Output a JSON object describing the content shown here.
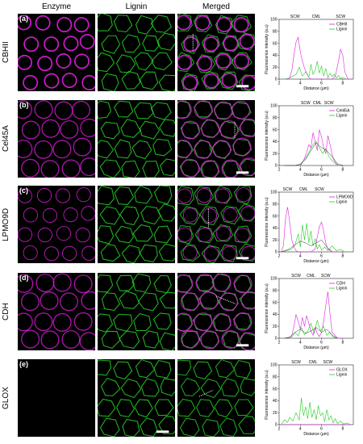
{
  "headers": {
    "enzyme": "Enzyme",
    "lignin": "Lignin",
    "merged": "Merged"
  },
  "colors": {
    "enzyme": "#e01ee0",
    "lignin": "#22cc22",
    "black": "#000000"
  },
  "rows": [
    {
      "letter": "(a)",
      "label": "CBHII",
      "enzyme_pattern": "rings-thick"
    },
    {
      "letter": "(b)",
      "label": "Cel45A",
      "enzyme_pattern": "walls-dense"
    },
    {
      "letter": "(c)",
      "label": "LPMO9D",
      "enzyme_pattern": "rings-thin"
    },
    {
      "letter": "(d)",
      "label": "CDH",
      "enzyme_pattern": "walls-dense"
    },
    {
      "letter": "(e)",
      "label": "GLOX",
      "enzyme_pattern": "none"
    }
  ],
  "chart_data": [
    {
      "type": "line",
      "xlabel": "Distance (µm)",
      "ylabel": "Fluorescence intensity (a.u)",
      "xlim": [
        2,
        9
      ],
      "ylim": [
        0,
        100
      ],
      "xticks": [
        2,
        4,
        6,
        8
      ],
      "yticks": [
        0,
        20,
        40,
        60,
        80,
        100
      ],
      "annotations": [
        {
          "text": "SCW",
          "x": 3.5
        },
        {
          "text": "CML",
          "x": 5.5
        },
        {
          "text": "SCW",
          "x": 7.8
        }
      ],
      "series": [
        {
          "name": "CBHII",
          "color": "#e01ee0",
          "x": [
            2.5,
            2.8,
            3.0,
            3.2,
            3.4,
            3.6,
            3.8,
            4.0,
            4.2,
            4.4,
            4.6,
            4.8,
            5.0,
            5.4,
            5.8,
            6.2,
            6.6,
            7.0,
            7.3,
            7.6,
            7.8,
            8.0,
            8.2,
            8.5,
            9.0
          ],
          "y": [
            0,
            0,
            2,
            15,
            40,
            62,
            70,
            45,
            30,
            18,
            10,
            3,
            0,
            0,
            0,
            0,
            0,
            0,
            5,
            30,
            50,
            40,
            12,
            0,
            0
          ]
        },
        {
          "name": "Lignin",
          "color": "#22cc22",
          "x": [
            2.5,
            3.0,
            3.3,
            3.6,
            3.9,
            4.2,
            4.5,
            4.8,
            5.0,
            5.2,
            5.4,
            5.6,
            5.8,
            6.0,
            6.2,
            6.4,
            6.6,
            6.8,
            7.0,
            7.2,
            7.4,
            7.6,
            7.8,
            8.0,
            8.3
          ],
          "y": [
            0,
            2,
            5,
            8,
            20,
            5,
            12,
            3,
            25,
            8,
            15,
            30,
            10,
            22,
            5,
            18,
            2,
            10,
            4,
            8,
            2,
            6,
            1,
            3,
            0
          ]
        }
      ]
    },
    {
      "type": "line",
      "xlabel": "Distance (µm)",
      "ylabel": "Fluorescence intensity (a.u)",
      "xlim": [
        2,
        9
      ],
      "ylim": [
        0,
        100
      ],
      "xticks": [
        2,
        4,
        6,
        8
      ],
      "yticks": [
        0,
        20,
        40,
        60,
        80,
        100
      ],
      "annotations": [
        {
          "text": "SCW",
          "x": 4.5
        },
        {
          "text": "CML",
          "x": 5.6
        },
        {
          "text": "SCW",
          "x": 6.7
        }
      ],
      "series": [
        {
          "name": "Cel45A",
          "color": "#e01ee0",
          "x": [
            2.5,
            3.5,
            4.0,
            4.2,
            4.4,
            4.6,
            4.8,
            5.0,
            5.2,
            5.4,
            5.6,
            5.8,
            6.0,
            6.2,
            6.4,
            6.6,
            6.8,
            7.0,
            7.2,
            7.4,
            7.6,
            8.0
          ],
          "y": [
            0,
            0,
            0,
            5,
            12,
            22,
            35,
            30,
            55,
            40,
            25,
            60,
            48,
            30,
            20,
            50,
            35,
            18,
            8,
            3,
            0,
            0
          ]
        },
        {
          "name": "Lignin",
          "color": "#22cc22",
          "x": [
            2.5,
            3.5,
            4.0,
            4.3,
            4.6,
            4.9,
            5.2,
            5.5,
            5.8,
            6.1,
            6.4,
            6.7,
            7.0,
            7.3,
            7.6,
            8.0
          ],
          "y": [
            0,
            0,
            2,
            8,
            15,
            25,
            35,
            40,
            30,
            20,
            28,
            15,
            8,
            3,
            0,
            0
          ]
        },
        {
          "name": "",
          "color": "#000000",
          "x": [
            2.5,
            3.5,
            4.0,
            4.5,
            5.0,
            5.5,
            6.0,
            6.5,
            7.0,
            7.5,
            8.0
          ],
          "y": [
            0,
            0,
            2,
            10,
            25,
            38,
            30,
            25,
            15,
            3,
            0
          ]
        }
      ]
    },
    {
      "type": "line",
      "xlabel": "Distance (µm)",
      "ylabel": "Fluorescence intensity (a.u)",
      "xlim": [
        2,
        9
      ],
      "ylim": [
        0,
        100
      ],
      "xticks": [
        2,
        4,
        6,
        8
      ],
      "yticks": [
        0,
        20,
        40,
        60,
        80,
        100
      ],
      "annotations": [
        {
          "text": "SCW",
          "x": 2.8
        },
        {
          "text": "CML",
          "x": 4.3
        },
        {
          "text": "SCW",
          "x": 5.8
        }
      ],
      "series": [
        {
          "name": "LPMO9D",
          "color": "#e01ee0",
          "x": [
            2.2,
            2.4,
            2.6,
            2.8,
            3.0,
            3.2,
            3.4,
            3.6,
            3.8,
            4.0,
            4.5,
            5.0,
            5.4,
            5.6,
            5.8,
            6.0,
            6.2,
            6.4,
            6.6,
            7.0,
            8.0
          ],
          "y": [
            0,
            10,
            55,
            75,
            50,
            20,
            8,
            2,
            0,
            0,
            0,
            0,
            5,
            25,
            42,
            50,
            35,
            15,
            5,
            0,
            0
          ]
        },
        {
          "name": "Lignin",
          "color": "#22cc22",
          "x": [
            2.2,
            2.8,
            3.2,
            3.5,
            3.8,
            4.0,
            4.2,
            4.4,
            4.6,
            4.8,
            5.0,
            5.2,
            5.4,
            5.6,
            5.8,
            6.0,
            6.3,
            6.6,
            7.0,
            7.4,
            7.8,
            8.2
          ],
          "y": [
            0,
            2,
            5,
            12,
            30,
            8,
            45,
            20,
            48,
            15,
            35,
            10,
            22,
            5,
            12,
            3,
            8,
            2,
            10,
            2,
            4,
            0
          ]
        },
        {
          "name": "",
          "color": "#000000",
          "x": [
            2.2,
            3.0,
            3.5,
            4.0,
            4.5,
            5.0,
            5.5,
            6.0,
            6.5,
            7.0
          ],
          "y": [
            0,
            5,
            12,
            18,
            15,
            10,
            15,
            20,
            8,
            0
          ]
        }
      ]
    },
    {
      "type": "line",
      "xlabel": "Distance (µm)",
      "ylabel": "Fluorescence intensity (a.u)",
      "xlim": [
        2,
        9
      ],
      "ylim": [
        0,
        100
      ],
      "xticks": [
        2,
        4,
        6,
        8
      ],
      "yticks": [
        0,
        20,
        40,
        60,
        80,
        100
      ],
      "annotations": [
        {
          "text": "SCW",
          "x": 3.6
        },
        {
          "text": "CML",
          "x": 5.0
        },
        {
          "text": "SCW",
          "x": 6.4
        }
      ],
      "series": [
        {
          "name": "CDH",
          "color": "#e01ee0",
          "x": [
            2.5,
            3.0,
            3.2,
            3.4,
            3.6,
            3.8,
            4.0,
            4.2,
            4.4,
            4.6,
            4.8,
            5.0,
            5.2,
            5.4,
            5.6,
            5.8,
            6.0,
            6.2,
            6.4,
            6.6,
            6.8,
            7.0,
            7.5,
            8.0
          ],
          "y": [
            0,
            0,
            5,
            20,
            40,
            28,
            15,
            35,
            20,
            38,
            25,
            12,
            5,
            18,
            8,
            3,
            10,
            28,
            55,
            78,
            40,
            10,
            0,
            0
          ]
        },
        {
          "name": "Lignin",
          "color": "#22cc22",
          "x": [
            2.5,
            3.2,
            3.5,
            3.8,
            4.1,
            4.4,
            4.7,
            5.0,
            5.3,
            5.6,
            5.9,
            6.2,
            6.5,
            6.8,
            7.1,
            7.5
          ],
          "y": [
            0,
            2,
            10,
            4,
            18,
            6,
            12,
            25,
            8,
            30,
            12,
            20,
            5,
            10,
            2,
            0
          ]
        },
        {
          "name": "",
          "color": "#000000",
          "x": [
            2.5,
            3.0,
            3.5,
            4.0,
            4.5,
            5.0,
            5.5,
            6.0,
            6.5,
            7.0,
            7.5
          ],
          "y": [
            0,
            2,
            10,
            15,
            8,
            12,
            18,
            10,
            15,
            5,
            0
          ]
        }
      ]
    },
    {
      "type": "line",
      "xlabel": "Distance (µm)",
      "ylabel": "Fluorescence intensity (a.u)",
      "xlim": [
        2,
        9
      ],
      "ylim": [
        0,
        100
      ],
      "xticks": [
        2,
        4,
        6,
        8
      ],
      "yticks": [
        0,
        20,
        40,
        60,
        80,
        100
      ],
      "annotations": [
        {
          "text": "SCW",
          "x": 3.6
        },
        {
          "text": "CML",
          "x": 5.2
        },
        {
          "text": "SCW",
          "x": 6.6
        }
      ],
      "series": [
        {
          "name": "GLOX",
          "color": "#e01ee0",
          "x": [
            2.2,
            9.0
          ],
          "y": [
            0,
            0
          ]
        },
        {
          "name": "Lignin",
          "color": "#22cc22",
          "x": [
            2.2,
            2.5,
            2.8,
            3.0,
            3.3,
            3.6,
            3.9,
            4.1,
            4.3,
            4.5,
            4.7,
            4.9,
            5.1,
            5.3,
            5.5,
            5.7,
            5.9,
            6.1,
            6.3,
            6.5,
            6.7,
            6.9,
            7.1,
            7.3,
            7.5,
            7.8,
            8.1,
            8.4,
            8.7
          ],
          "y": [
            0,
            8,
            4,
            12,
            6,
            20,
            8,
            45,
            15,
            30,
            10,
            38,
            12,
            25,
            8,
            32,
            15,
            20,
            5,
            25,
            8,
            15,
            3,
            10,
            2,
            6,
            1,
            3,
            0
          ]
        }
      ]
    }
  ]
}
